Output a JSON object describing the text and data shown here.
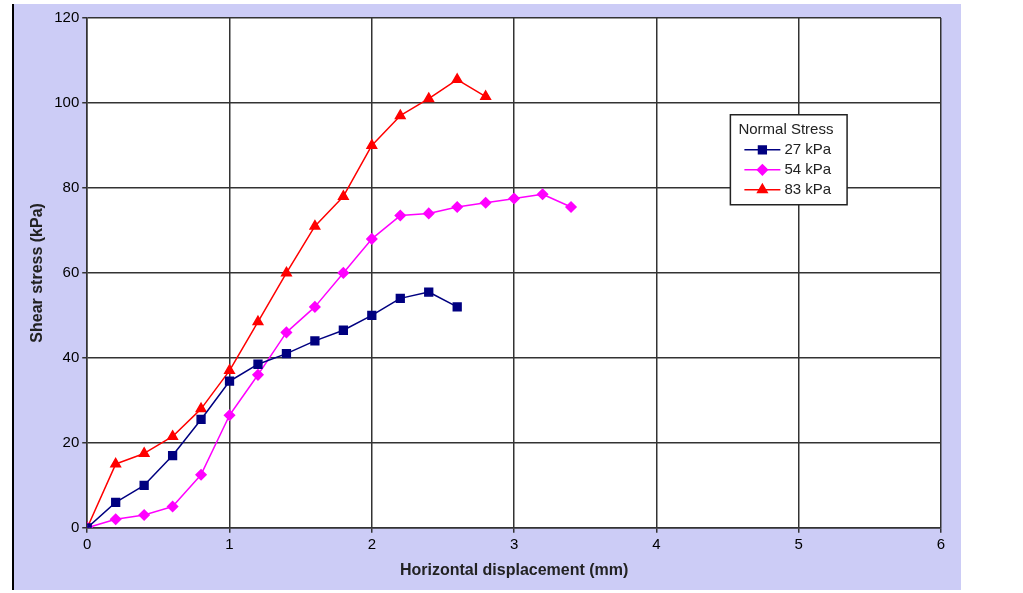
{
  "chart_data": {
    "type": "line",
    "xlabel": "Horizontal displacement (mm)",
    "ylabel": "Shear stress (kPa)",
    "legend_title": "Normal Stress",
    "xlim": [
      0,
      6
    ],
    "xticks": [
      0,
      1,
      2,
      3,
      4,
      5,
      6
    ],
    "ylim": [
      0,
      120
    ],
    "yticks": [
      0,
      20,
      40,
      60,
      80,
      100,
      120
    ],
    "grid": true,
    "legend": "top right",
    "series": [
      {
        "name": "27 kPa",
        "color": "#000080",
        "marker": "square",
        "x": [
          0,
          0.2,
          0.4,
          0.6,
          0.8,
          1.0,
          1.2,
          1.4,
          1.6,
          1.8,
          2.0,
          2.2,
          2.4,
          2.6
        ],
        "values": [
          0,
          6,
          10,
          17,
          25.5,
          34.5,
          38.5,
          41,
          44,
          46.5,
          50,
          54,
          55.5,
          52
        ]
      },
      {
        "name": "54 kPa",
        "color": "#ff00ff",
        "marker": "diamond",
        "x": [
          0,
          0.2,
          0.4,
          0.6,
          0.8,
          1.0,
          1.2,
          1.4,
          1.6,
          1.8,
          2.0,
          2.2,
          2.4,
          2.6,
          2.8,
          3.0,
          3.2,
          3.4
        ],
        "values": [
          0,
          2,
          3,
          5,
          12.5,
          26.5,
          36,
          46,
          52,
          60,
          68,
          73.5,
          74,
          75.5,
          76.5,
          77.5,
          78.5,
          75.5
        ]
      },
      {
        "name": "83 kPa",
        "color": "#ff0000",
        "marker": "triangle",
        "x": [
          0,
          0.2,
          0.4,
          0.6,
          0.8,
          1.0,
          1.2,
          1.4,
          1.6,
          1.8,
          2.0,
          2.2,
          2.4,
          2.6,
          2.8
        ],
        "values": [
          0,
          15,
          17.5,
          21.5,
          28,
          37,
          48.5,
          60,
          71,
          78,
          90,
          97,
          101,
          105.5,
          101.5
        ]
      }
    ]
  }
}
